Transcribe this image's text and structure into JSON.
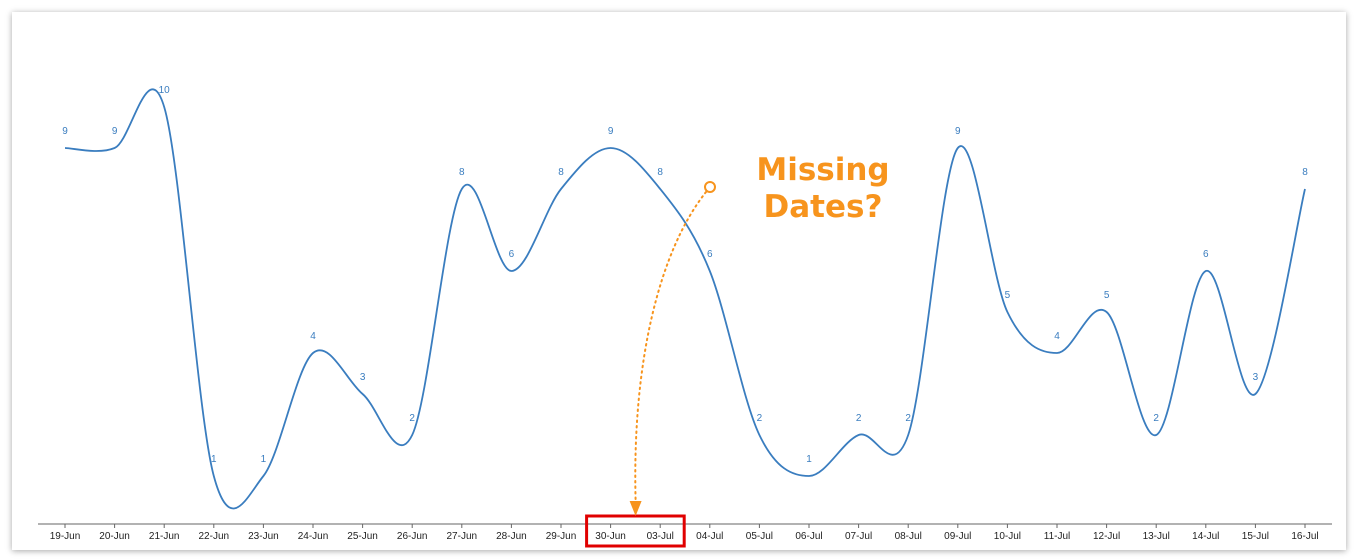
{
  "chart_data": {
    "type": "line",
    "categories": [
      "19-Jun",
      "20-Jun",
      "21-Jun",
      "22-Jun",
      "23-Jun",
      "24-Jun",
      "25-Jun",
      "26-Jun",
      "27-Jun",
      "28-Jun",
      "29-Jun",
      "30-Jun",
      "03-Jul",
      "04-Jul",
      "05-Jul",
      "06-Jul",
      "07-Jul",
      "08-Jul",
      "09-Jul",
      "10-Jul",
      "11-Jul",
      "12-Jul",
      "13-Jul",
      "14-Jul",
      "15-Jul",
      "16-Jul"
    ],
    "values": [
      9,
      9,
      10,
      1,
      1,
      4,
      3,
      2,
      8,
      6,
      8,
      9,
      8,
      6,
      2,
      1,
      2,
      2,
      9,
      5,
      4,
      5,
      2,
      6,
      3,
      8
    ],
    "ylim": [
      0,
      10
    ],
    "grid": false,
    "legend": "none",
    "smooth": true,
    "highlight_categories": [
      "30-Jun",
      "03-Jul"
    ],
    "annotation": {
      "lines": [
        "Missing",
        "Dates?"
      ],
      "target_category": "30-Jun"
    }
  },
  "colors": {
    "line": "#3a7dbf",
    "data_label": "#3a7dbf",
    "axis": "#666666",
    "highlight_box": "#e00000",
    "annotation": "#f7941d"
  }
}
